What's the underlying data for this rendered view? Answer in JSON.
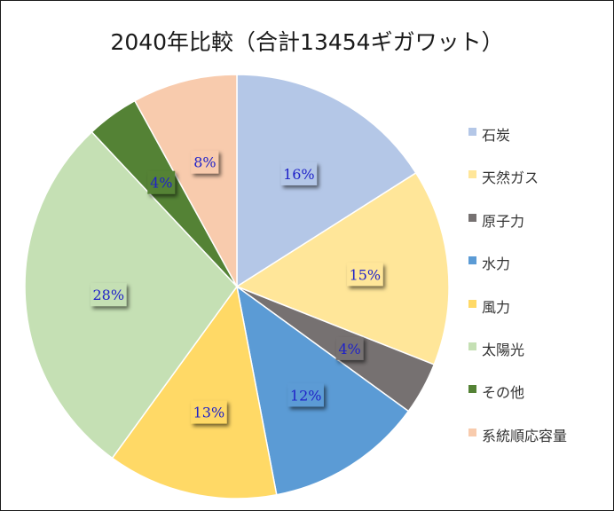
{
  "chart_data": {
    "type": "pie",
    "title": "2040年比較（合計13454ギガワット）",
    "start_angle_deg": 0,
    "direction": "clockwise",
    "legend_position": "right",
    "slices": [
      {
        "label": "石炭",
        "value": 16,
        "display": "16%",
        "color": "#b4c7e7"
      },
      {
        "label": "天然ガス",
        "value": 15,
        "display": "15%",
        "color": "#ffe699"
      },
      {
        "label": "原子力",
        "value": 4,
        "display": "4%",
        "color": "#767171"
      },
      {
        "label": "水力",
        "value": 12,
        "display": "12%",
        "color": "#5b9bd5"
      },
      {
        "label": "風力",
        "value": 13,
        "display": "13%",
        "color": "#ffd966"
      },
      {
        "label": "太陽光",
        "value": 28,
        "display": "28%",
        "color": "#c5e0b4"
      },
      {
        "label": "その他",
        "value": 4,
        "display": "4%",
        "color": "#548235"
      },
      {
        "label": "系統順応容量",
        "value": 8,
        "display": "8%",
        "color": "#f8cbad"
      }
    ]
  }
}
